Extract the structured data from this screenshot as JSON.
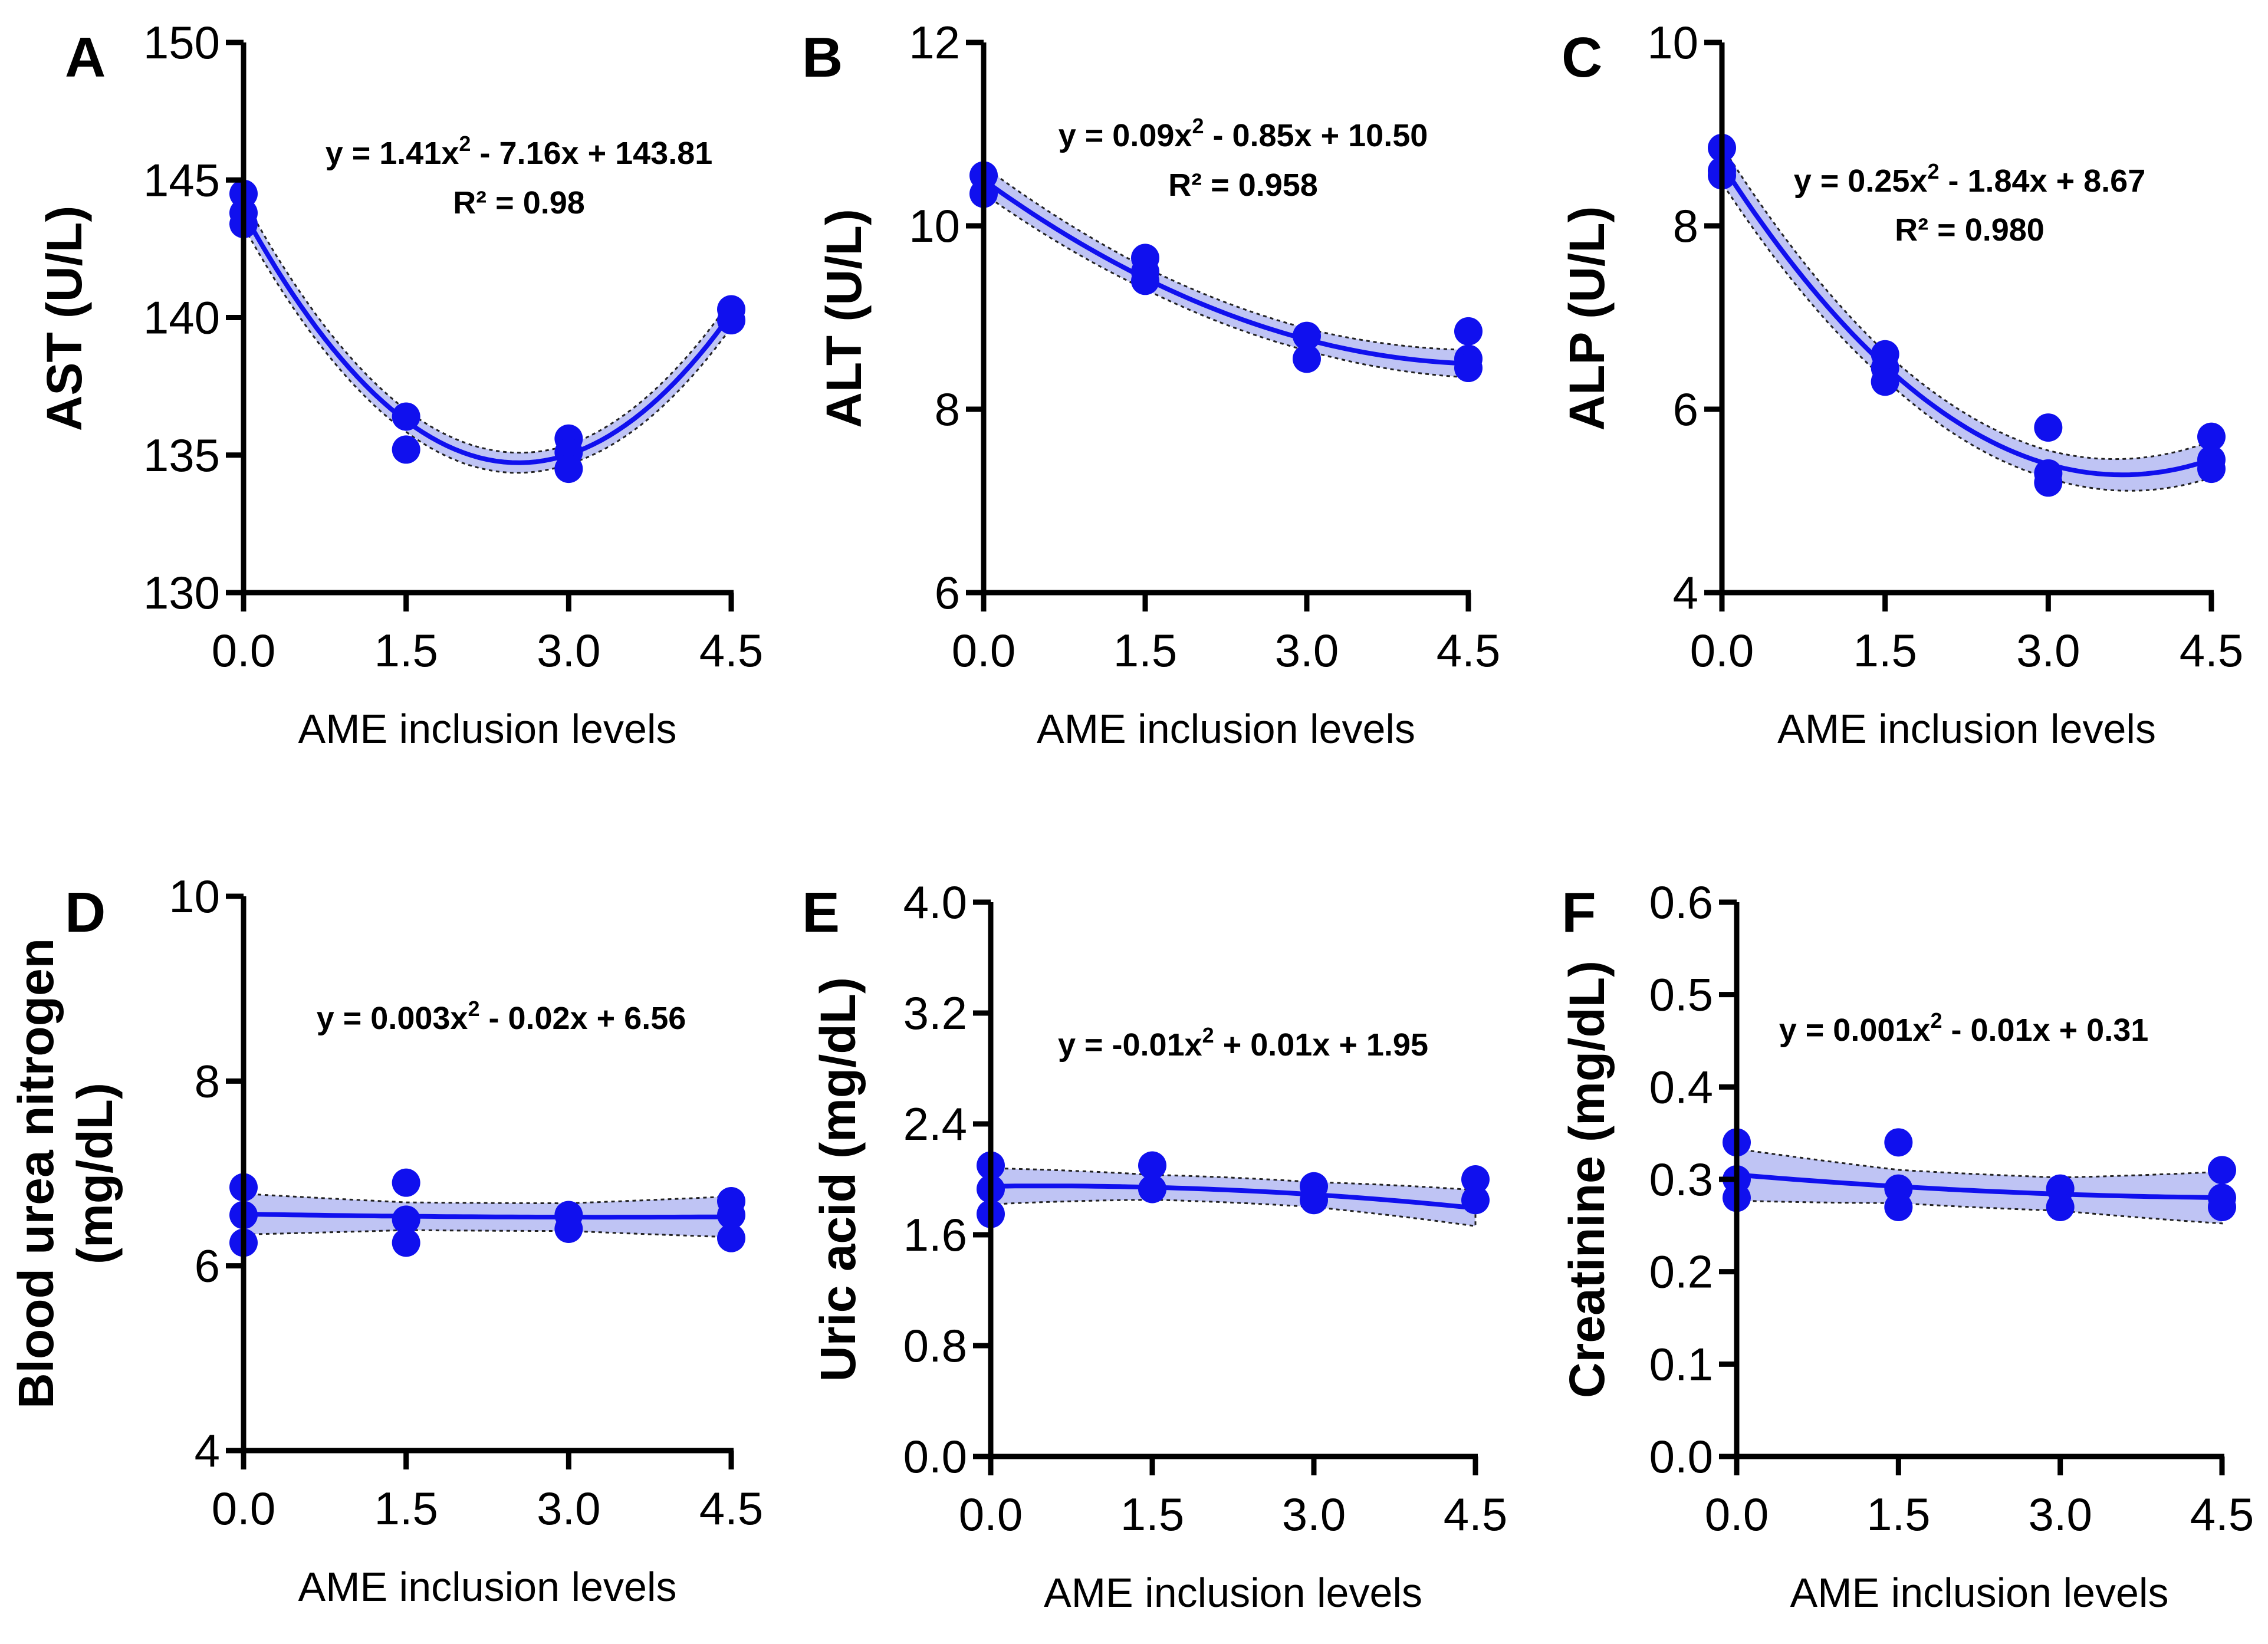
{
  "colors": {
    "series": "#1010ee",
    "band": "#aab0f0",
    "axis": "#000000"
  },
  "chart_data": [
    {
      "type": "scatter",
      "panel": "A",
      "ylabel": "AST (U/L)",
      "xlabel": "AME inclusion levels",
      "ylim": [
        130,
        150
      ],
      "yticks": [
        "130",
        "135",
        "140",
        "145",
        "150"
      ],
      "xlim": [
        0,
        4.5
      ],
      "xticks": [
        "0.0",
        "1.5",
        "3.0",
        "4.5"
      ],
      "equation_parts": [
        "y = 1.41x",
        "2",
        " - 7.16x + 143.81"
      ],
      "r2": "R² = 0.98",
      "fit": [
        1.41,
        -7.16,
        143.81
      ],
      "ci_half": [
        0.5,
        0.4,
        0.35,
        0.5
      ],
      "points": [
        [
          0,
          144.5
        ],
        [
          0,
          143.8
        ],
        [
          0,
          143.4
        ],
        [
          1.5,
          136.4
        ],
        [
          1.5,
          135.2
        ],
        [
          3.0,
          135.6
        ],
        [
          3.0,
          135.1
        ],
        [
          3.0,
          134.5
        ],
        [
          4.5,
          140.3
        ],
        [
          4.5,
          139.9
        ]
      ]
    },
    {
      "type": "scatter",
      "panel": "B",
      "ylabel": "ALT (U/L)",
      "xlabel": "AME inclusion levels",
      "ylim": [
        6,
        12
      ],
      "yticks": [
        "6",
        "8",
        "10",
        "12"
      ],
      "xlim": [
        0,
        4.5
      ],
      "xticks": [
        "0.0",
        "1.5",
        "3.0",
        "4.5"
      ],
      "equation_parts": [
        "y = 0.09x",
        "2",
        " - 0.85x + 10.50"
      ],
      "r2": "R² = 0.958",
      "fit": [
        0.09,
        -0.85,
        10.5
      ],
      "ci_half": [
        0.15,
        0.12,
        0.12,
        0.15
      ],
      "points": [
        [
          0,
          10.55
        ],
        [
          0,
          10.35
        ],
        [
          1.5,
          9.65
        ],
        [
          1.5,
          9.5
        ],
        [
          1.5,
          9.4
        ],
        [
          3.0,
          8.8
        ],
        [
          3.0,
          8.55
        ],
        [
          4.5,
          8.85
        ],
        [
          4.5,
          8.55
        ],
        [
          4.5,
          8.45
        ]
      ]
    },
    {
      "type": "scatter",
      "panel": "C",
      "ylabel": "ALP (U/L)",
      "xlabel": "AME inclusion levels",
      "ylim": [
        4,
        10
      ],
      "yticks": [
        "4",
        "6",
        "8",
        "10"
      ],
      "xlim": [
        0,
        4.5
      ],
      "xticks": [
        "0.0",
        "1.5",
        "3.0",
        "4.5"
      ],
      "equation_parts": [
        "y = 0.25x",
        "2",
        " - 1.84x + 8.67"
      ],
      "r2": "R² = 0.980",
      "fit": [
        0.25,
        -1.84,
        8.67
      ],
      "ci_half": [
        0.2,
        0.15,
        0.15,
        0.2
      ],
      "points": [
        [
          0,
          8.85
        ],
        [
          0,
          8.6
        ],
        [
          0,
          8.55
        ],
        [
          1.5,
          6.6
        ],
        [
          1.5,
          6.45
        ],
        [
          1.5,
          6.3
        ],
        [
          3.0,
          5.8
        ],
        [
          3.0,
          5.3
        ],
        [
          3.0,
          5.2
        ],
        [
          4.5,
          5.7
        ],
        [
          4.5,
          5.45
        ],
        [
          4.5,
          5.35
        ]
      ]
    },
    {
      "type": "scatter",
      "panel": "D",
      "ylabel_lines": [
        "Blood urea nitrogen",
        "(mg/dL)"
      ],
      "xlabel": "AME inclusion levels",
      "ylim": [
        4,
        10
      ],
      "yticks": [
        "4",
        "6",
        "8",
        "10"
      ],
      "xlim": [
        0,
        4.5
      ],
      "xticks": [
        "0.0",
        "1.5",
        "3.0",
        "4.5"
      ],
      "equation_parts": [
        "y = 0.003x",
        "2",
        " - 0.02x + 6.56"
      ],
      "r2": "",
      "fit": [
        0.003,
        -0.02,
        6.56
      ],
      "ci_half": [
        0.22,
        0.15,
        0.15,
        0.22
      ],
      "points": [
        [
          0,
          6.85
        ],
        [
          0,
          6.55
        ],
        [
          0,
          6.25
        ],
        [
          1.5,
          6.9
        ],
        [
          1.5,
          6.5
        ],
        [
          1.5,
          6.25
        ],
        [
          3.0,
          6.55
        ],
        [
          3.0,
          6.4
        ],
        [
          4.5,
          6.7
        ],
        [
          4.5,
          6.55
        ],
        [
          4.5,
          6.3
        ]
      ]
    },
    {
      "type": "scatter",
      "panel": "E",
      "ylabel": "Uric acid (mg/dL)",
      "xlabel": "AME inclusion levels",
      "ylim": [
        0,
        4
      ],
      "yticks": [
        "0.0",
        "0.8",
        "1.6",
        "2.4",
        "3.2",
        "4.0"
      ],
      "xlim": [
        0,
        4.5
      ],
      "xticks": [
        "0.0",
        "1.5",
        "3.0",
        "4.5"
      ],
      "equation_parts": [
        "y = -0.01x",
        "2",
        " + 0.01x + 1.95"
      ],
      "r2": "",
      "fit": [
        -0.01,
        0.01,
        1.95
      ],
      "ci_half": [
        0.13,
        0.09,
        0.09,
        0.13
      ],
      "points": [
        [
          0,
          2.1
        ],
        [
          0,
          1.93
        ],
        [
          0,
          1.75
        ],
        [
          1.5,
          2.1
        ],
        [
          1.5,
          1.93
        ],
        [
          3.0,
          1.95
        ],
        [
          3.0,
          1.85
        ],
        [
          4.5,
          2.0
        ],
        [
          4.5,
          1.85
        ]
      ]
    },
    {
      "type": "scatter",
      "panel": "F",
      "ylabel": "Creatinine (mg/dL)",
      "xlabel": "AME inclusion levels",
      "ylim": [
        0,
        0.6
      ],
      "yticks": [
        "0.0",
        "0.1",
        "0.2",
        "0.3",
        "0.4",
        "0.5",
        "0.6"
      ],
      "xlim": [
        0,
        4.5
      ],
      "xticks": [
        "0.0",
        "1.5",
        "3.0",
        "4.5"
      ],
      "equation_parts": [
        "y = 0.001x",
        "2",
        " - 0.01x + 0.31"
      ],
      "r2": "",
      "fit": [
        0.001,
        -0.01,
        0.305
      ],
      "ci_half": [
        0.028,
        0.018,
        0.018,
        0.028
      ],
      "points": [
        [
          0,
          0.34
        ],
        [
          0,
          0.3
        ],
        [
          0,
          0.28
        ],
        [
          1.5,
          0.34
        ],
        [
          1.5,
          0.29
        ],
        [
          1.5,
          0.27
        ],
        [
          3.0,
          0.29
        ],
        [
          3.0,
          0.27
        ],
        [
          4.5,
          0.31
        ],
        [
          4.5,
          0.28
        ],
        [
          4.5,
          0.27
        ]
      ]
    }
  ]
}
